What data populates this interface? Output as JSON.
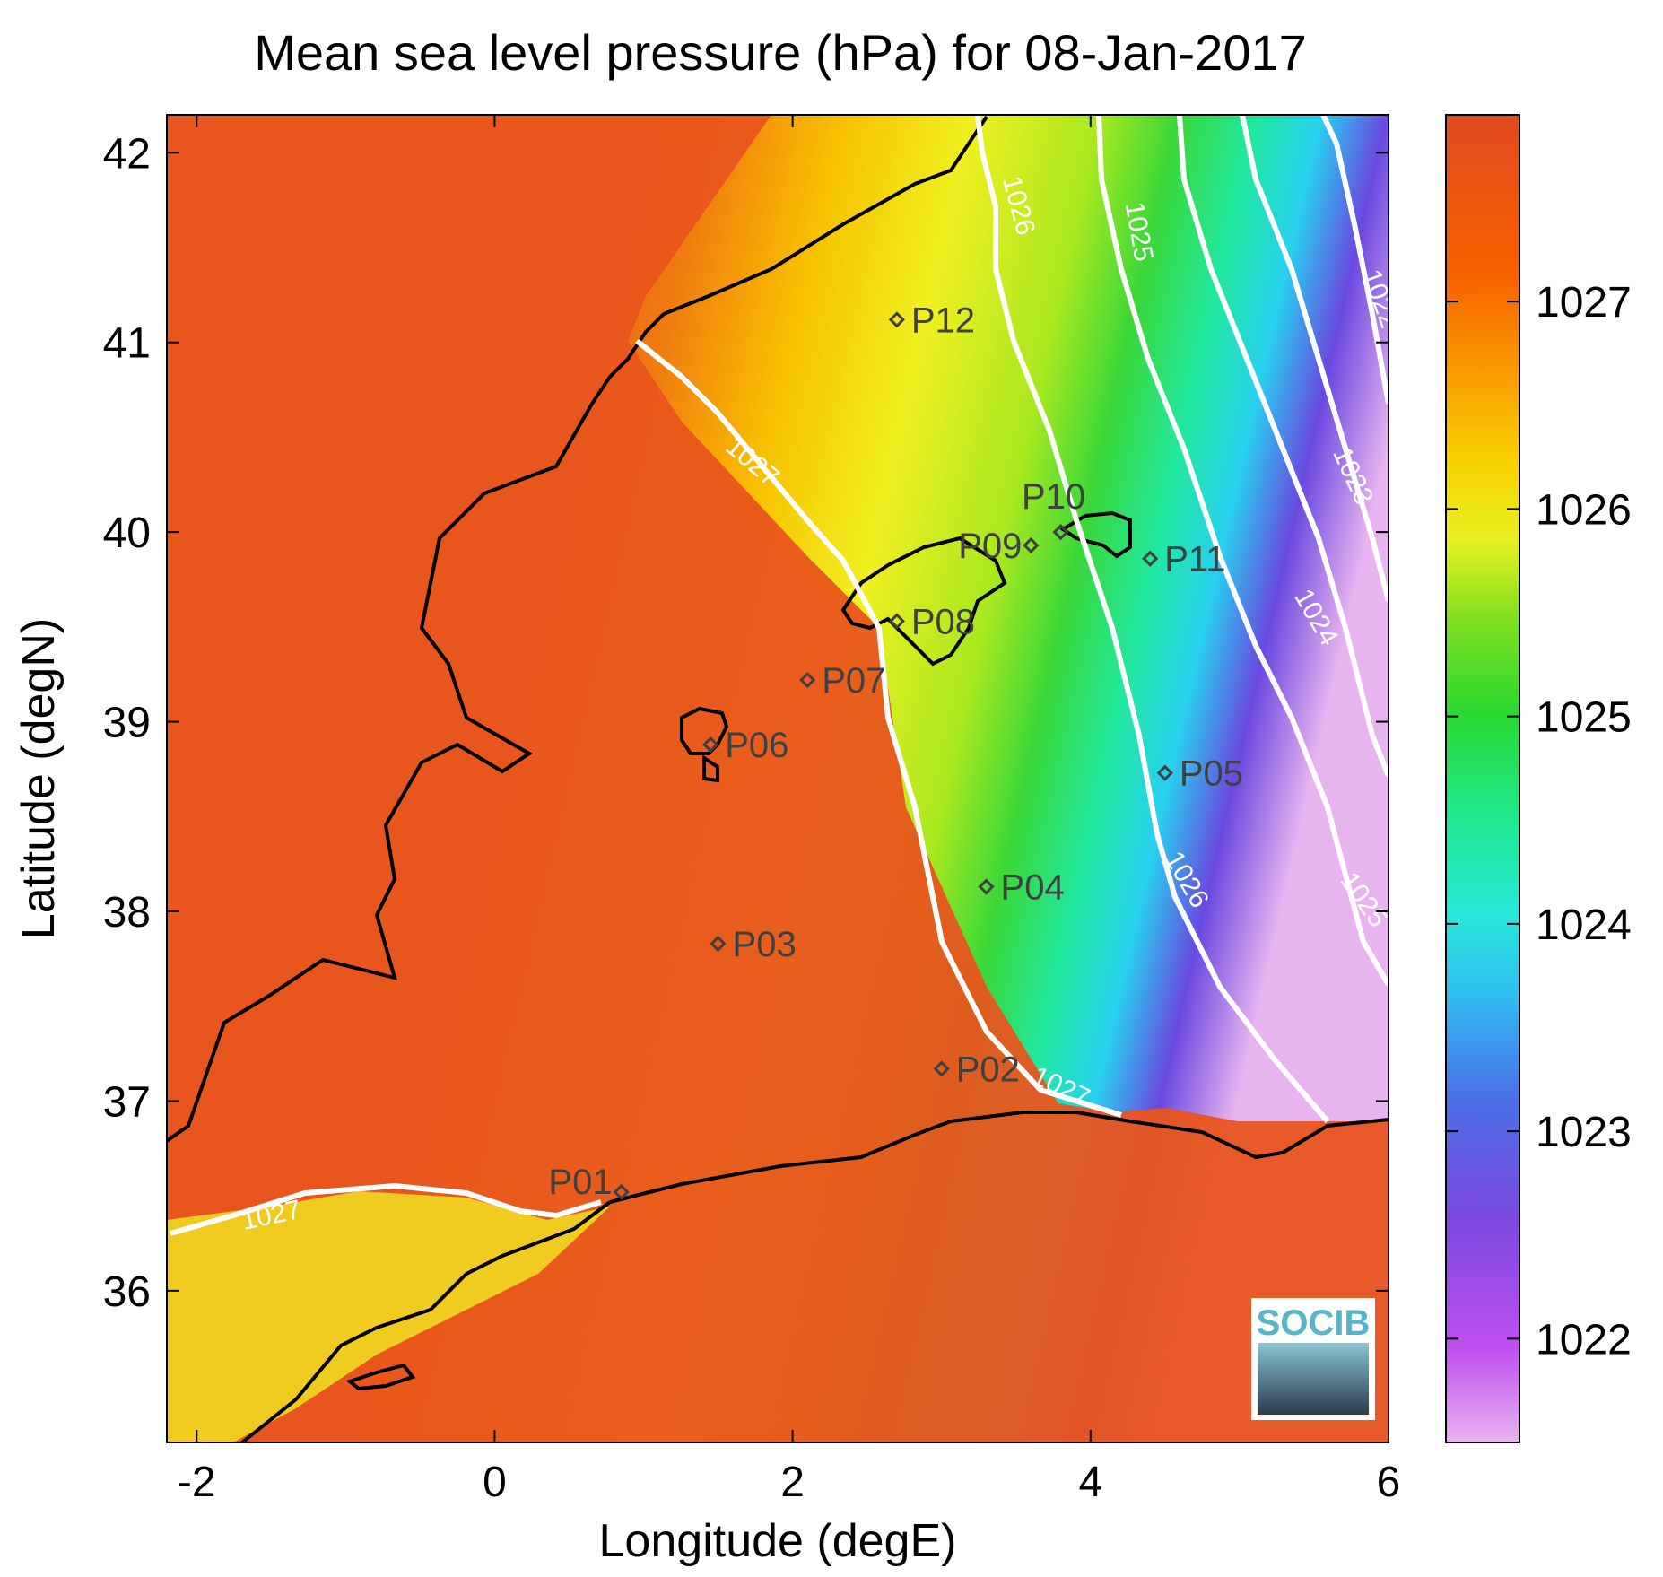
{
  "title": "Mean sea level pressure (hPa) for 08-Jan-2017",
  "xlabel": "Longitude (degE)",
  "ylabel": "Latitude (degN)",
  "x_ticks": [
    "-2",
    "0",
    "2",
    "4",
    "6"
  ],
  "y_ticks": [
    "36",
    "37",
    "38",
    "39",
    "40",
    "41",
    "42"
  ],
  "colorbar_ticks": [
    "1022",
    "1023",
    "1024",
    "1025",
    "1026",
    "1027"
  ],
  "colormap": [
    "#e8b4f0",
    "#b83df0",
    "#6a48e0",
    "#3aa0f0",
    "#28e8e8",
    "#20e870",
    "#3ad838",
    "#a8e820",
    "#f0f020",
    "#f8c000",
    "#f87000",
    "#e04a20"
  ],
  "logo_text": "SOCIB",
  "contour_labels": [
    {
      "text": "1027"
    },
    {
      "text": "1027"
    },
    {
      "text": "1027"
    },
    {
      "text": "1026"
    },
    {
      "text": "1026"
    },
    {
      "text": "1025"
    },
    {
      "text": "1025"
    },
    {
      "text": "1024"
    },
    {
      "text": "1023"
    },
    {
      "text": "1022"
    }
  ],
  "stations": [
    {
      "id": "P01",
      "lon": 0.85,
      "lat": 36.52
    },
    {
      "id": "P02",
      "lon": 3.0,
      "lat": 37.17
    },
    {
      "id": "P03",
      "lon": 1.5,
      "lat": 37.83
    },
    {
      "id": "P04",
      "lon": 3.3,
      "lat": 38.13
    },
    {
      "id": "P05",
      "lon": 4.5,
      "lat": 38.73
    },
    {
      "id": "P06",
      "lon": 1.45,
      "lat": 38.88
    },
    {
      "id": "P07",
      "lon": 2.1,
      "lat": 39.22
    },
    {
      "id": "P08",
      "lon": 2.7,
      "lat": 39.53
    },
    {
      "id": "P09",
      "lon": 3.6,
      "lat": 39.93
    },
    {
      "id": "P10",
      "lon": 3.8,
      "lat": 40.0
    },
    {
      "id": "P11",
      "lon": 4.4,
      "lat": 39.86
    },
    {
      "id": "P12",
      "lon": 2.7,
      "lat": 41.12
    }
  ],
  "chart_data": {
    "type": "heatmap",
    "title": "Mean sea level pressure (hPa) for 08-Jan-2017",
    "xlabel": "Longitude (degE)",
    "ylabel": "Latitude (degN)",
    "xlim": [
      -2.2,
      6.0
    ],
    "ylim": [
      35.2,
      42.2
    ],
    "colorbar_range": [
      1021.5,
      1027.9
    ],
    "contour_levels": [
      1022,
      1023,
      1024,
      1025,
      1026,
      1027
    ],
    "grid": false,
    "logo": "SOCIB"
  }
}
